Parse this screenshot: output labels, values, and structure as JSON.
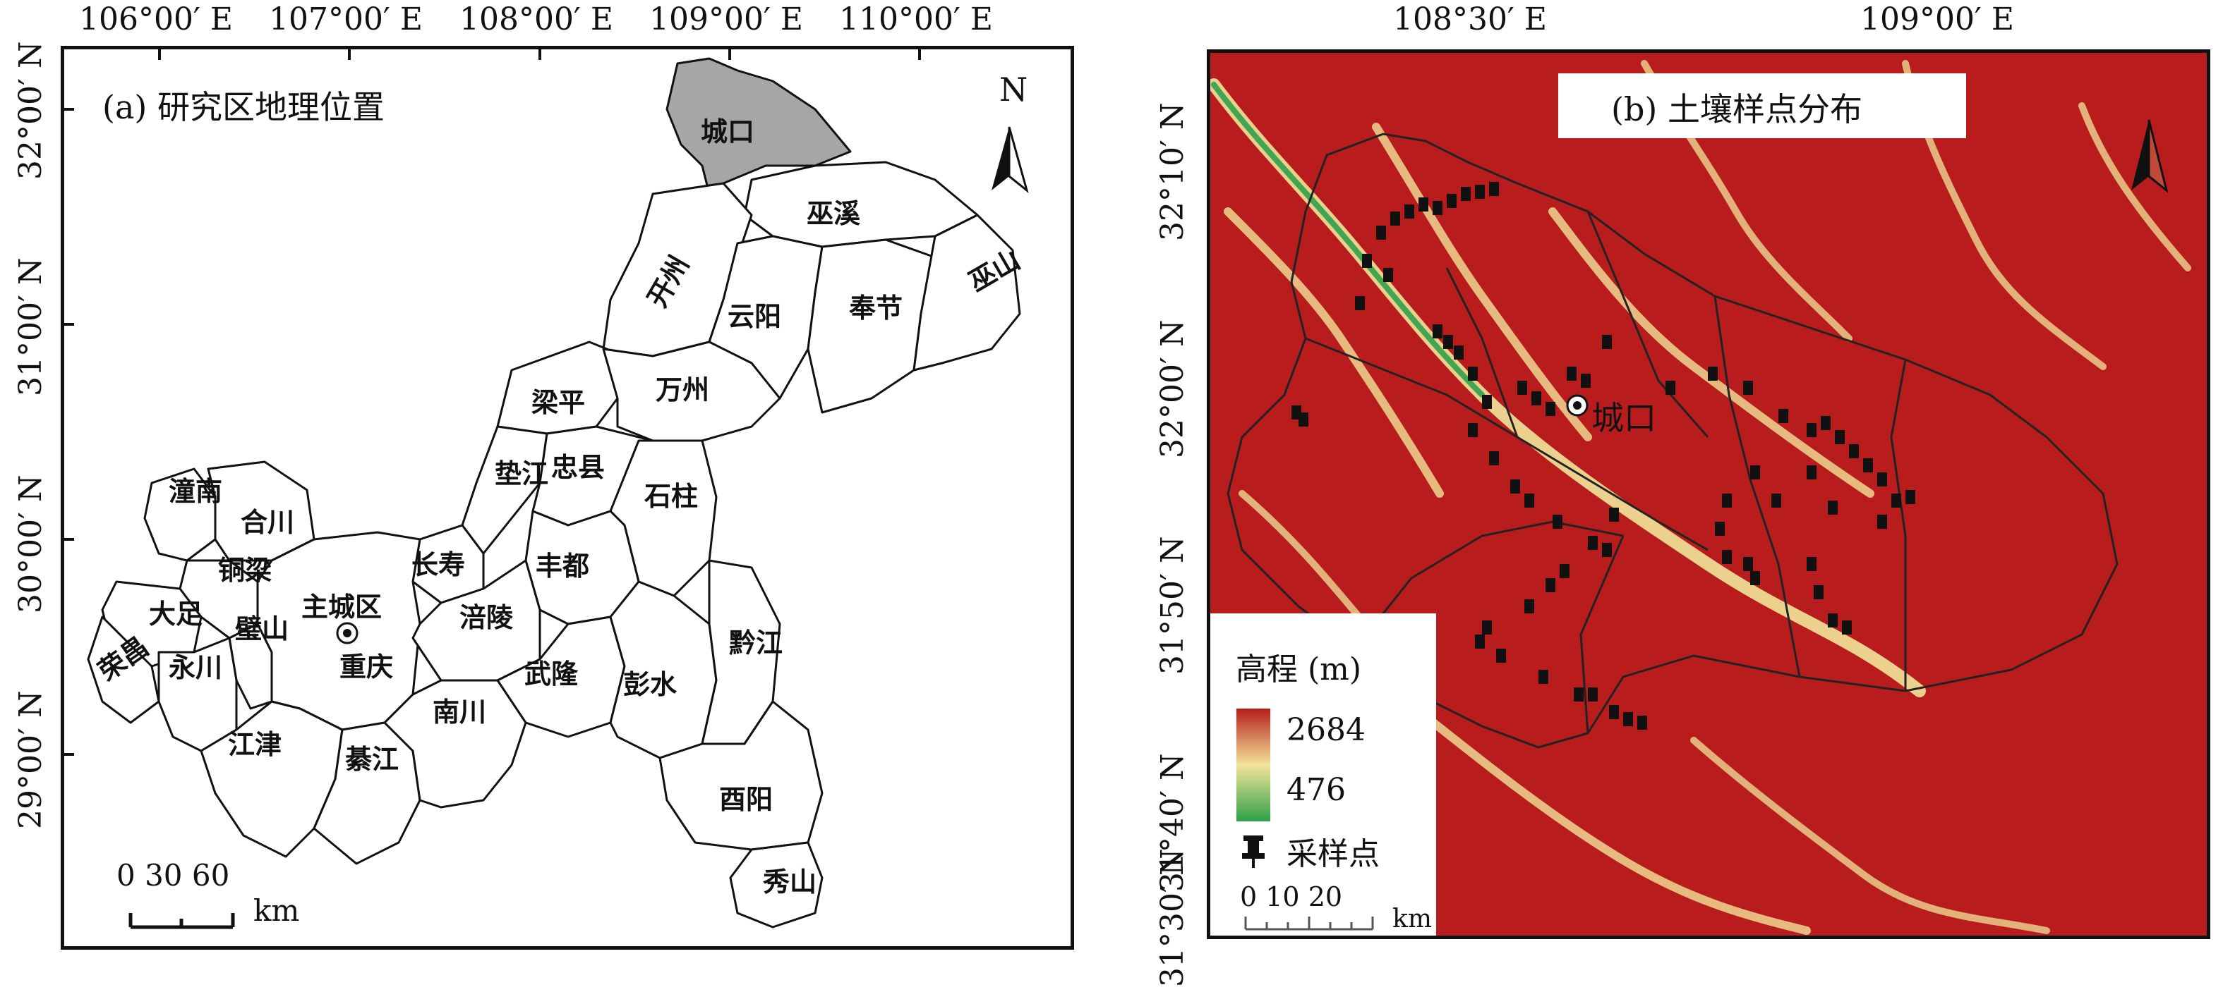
{
  "panel_a": {
    "title": "(a) 研究区地理位置",
    "lon_labels": [
      "106°00′ E",
      "107°00′ E",
      "108°00′ E",
      "109°00′ E",
      "110°00′ E"
    ],
    "lat_labels": [
      "32°00′ N",
      "31°00′ N",
      "30°00′ N",
      "29°00′ N"
    ],
    "north": "N",
    "scale_numbers": "0  30 60",
    "scale_unit": "km",
    "capital_label": "主城区",
    "capital_city": "重庆",
    "highlight_color": "#a6a6a6",
    "counties": {
      "chengkou": "城口",
      "wuxi": "巫溪",
      "kaizhou": "开州",
      "yunyang": "云阳",
      "fengjie": "奉节",
      "wushan": "巫山",
      "liangping": "梁平",
      "wanzhou": "万州",
      "dianjiang": "垫江",
      "zhongxian": "忠县",
      "shizhu": "石柱",
      "tongnan": "潼南",
      "hechuan": "合川",
      "tongliang": "铜梁",
      "changshou": "长寿",
      "fengdu": "丰都",
      "dazu": "大足",
      "bishan": "璧山",
      "fuling": "涪陵",
      "rongchang": "荣昌",
      "yongchuan": "永川",
      "wulong": "武隆",
      "pengshui": "彭水",
      "qianjiang": "黔江",
      "jiangjin": "江津",
      "qijiang": "綦江",
      "nanchuan": "南川",
      "youyang": "酉阳",
      "xiushan": "秀山"
    }
  },
  "panel_b": {
    "title": "(b) 土壤样点分布",
    "lon_labels": [
      "108°30′ E",
      "109°00′ E"
    ],
    "lat_labels": [
      "32°10′ N",
      "32°00′ N",
      "31°50′ N",
      "31°40′ N",
      "31°30′ N"
    ],
    "town": "城口",
    "legend_title": "高程 (m)",
    "elev_max": "2684",
    "elev_min": "476",
    "sample_label": "采样点",
    "scale_numbers": "0   10   20",
    "scale_unit": "km",
    "color_high": "#b81c1c",
    "color_mid": "#f2e49a",
    "color_low": "#2fa14a"
  }
}
